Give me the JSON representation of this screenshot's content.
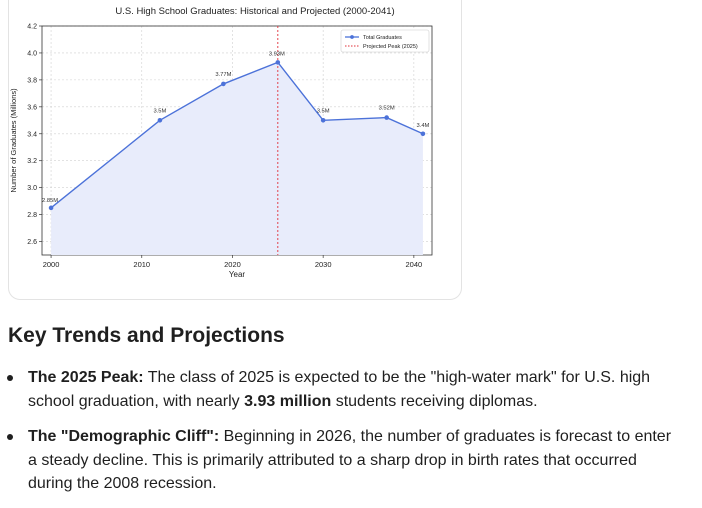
{
  "chart_data": {
    "type": "line",
    "title": "U.S. High School Graduates: Historical and Projected (2000-2041)",
    "xlabel": "Year",
    "ylabel": "Number of Graduates (Millions)",
    "xlim": [
      1999,
      2042
    ],
    "ylim": [
      2.5,
      4.2
    ],
    "xticks": [
      2000,
      2010,
      2020,
      2030,
      2040
    ],
    "yticks": [
      2.6,
      2.8,
      3.0,
      3.2,
      3.4,
      3.6,
      3.8,
      4.0,
      4.2
    ],
    "ytick_labels": [
      "2.6",
      "2.8",
      "3.0",
      "3.2",
      "3.4",
      "3.6",
      "3.8",
      "4.0",
      "4.2"
    ],
    "grid": true,
    "legend_position": "top-right",
    "series": [
      {
        "name": "Total Graduates",
        "color": "#4c72d9",
        "fill": "#e8ecfb",
        "x": [
          2000,
          2012,
          2019,
          2025,
          2030,
          2037,
          2041
        ],
        "y": [
          2.85,
          3.5,
          3.77,
          3.93,
          3.5,
          3.52,
          3.4
        ],
        "labels": [
          "2.85M",
          "3.5M",
          "3.77M",
          "3.93M",
          "3.5M",
          "3.52M",
          "3.4M"
        ]
      }
    ],
    "reference_line": {
      "name": "Projected Peak (2025)",
      "x": 2025,
      "color": "#e0303a"
    }
  },
  "content": {
    "heading": "Key Trends and Projections",
    "bullets": [
      {
        "lead": "The 2025 Peak:",
        "text_before": " The class of 2025 is expected to be the \"high-water mark\" for U.S. high school graduation, with nearly ",
        "strong": "3.93 million",
        "text_after": " students receiving diplomas."
      },
      {
        "lead": "The \"Demographic Cliff\":",
        "text_before": " Beginning in 2026, the number of graduates is forecast to enter a steady decline. This is primarily attributed to a sharp drop in birth rates that occurred during the 2008 recession.",
        "strong": "",
        "text_after": ""
      }
    ]
  }
}
